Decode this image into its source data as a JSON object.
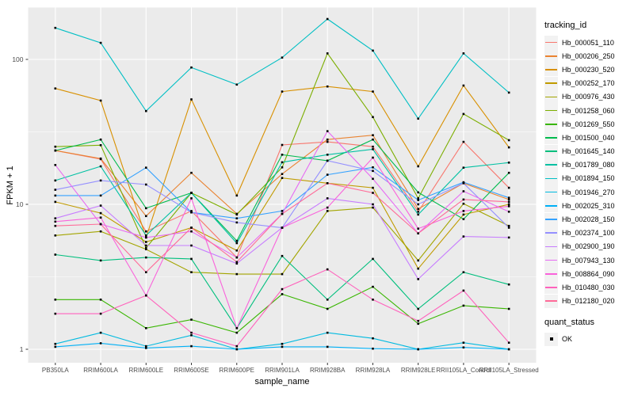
{
  "figure": {
    "background": "#FFFFFF",
    "panel_bg": "#EBEBEB",
    "grid_color": "#FFFFFF",
    "axis_text_color": "#4D4D4D",
    "tick_mark_color": "#333333",
    "point_color": "#000000",
    "legend_key_bg": "#F2F2F2"
  },
  "chart_data": {
    "type": "line",
    "title": "",
    "xlabel": "sample_name",
    "ylabel": "FPKM + 1",
    "y_scale": "log10",
    "y_ticks": [
      1,
      10,
      100
    ],
    "y_minor_ticks": [
      3.1623,
      31.623
    ],
    "ylim": [
      0.81,
      228
    ],
    "grid": "on",
    "legend": {
      "position": "right",
      "color_title": "tracking_id",
      "shape_title": "quant_status",
      "shape_items": [
        "OK"
      ]
    },
    "categories": [
      "PB350LA",
      "RRIM600LA",
      "RRIM600LE",
      "RRIM600SE",
      "RRIM600PE",
      "RRIM901LA",
      "RRIM928BA",
      "RRIM928LA",
      "RRIM928LE",
      "RRII105LA_Control",
      "RRII105LA_Stressed"
    ],
    "series": [
      {
        "name": "Hb_000051_110",
        "color": "#F8766D",
        "values": [
          23.5,
          20.5,
          6.5,
          9.0,
          4.3,
          25.7,
          27,
          25,
          8.9,
          27,
          13.0
        ]
      },
      {
        "name": "Hb_000206_250",
        "color": "#EA8331",
        "values": [
          23.5,
          20.7,
          8.3,
          16.5,
          8.6,
          16.2,
          28,
          30,
          9.3,
          14,
          10.8
        ]
      },
      {
        "name": "Hb_000230_520",
        "color": "#D89000",
        "values": [
          63,
          52,
          5.9,
          53,
          11.5,
          60,
          65,
          60,
          18.3,
          66,
          24.7
        ]
      },
      {
        "name": "Hb_000252_170",
        "color": "#C09B00",
        "values": [
          10.4,
          8.7,
          5.5,
          6.9,
          4.8,
          15.2,
          14,
          13,
          3.6,
          8.5,
          10.0
        ]
      },
      {
        "name": "Hb_000976_430",
        "color": "#A3A500",
        "values": [
          6.1,
          6.5,
          4.9,
          3.4,
          3.3,
          3.3,
          9,
          9.5,
          4.1,
          10.1,
          7.1
        ]
      },
      {
        "name": "Hb_001258_060",
        "color": "#7CAE00",
        "values": [
          25,
          25.6,
          5.0,
          12,
          8.5,
          18,
          110,
          40,
          11,
          42,
          27.7
        ]
      },
      {
        "name": "Hb_001269_550",
        "color": "#39B600",
        "values": [
          2.2,
          2.2,
          1.4,
          1.6,
          1.3,
          2.4,
          1.9,
          2.7,
          1.5,
          2.0,
          1.9
        ]
      },
      {
        "name": "Hb_001500_040",
        "color": "#00BB4E",
        "values": [
          23.5,
          28,
          9.4,
          12,
          5.6,
          22,
          20,
          28,
          12.1,
          7.9,
          16.5
        ]
      },
      {
        "name": "Hb_001645_140",
        "color": "#00BF7D",
        "values": [
          4.5,
          4.1,
          4.3,
          4.2,
          1.4,
          4.4,
          2.2,
          4.2,
          1.9,
          3.4,
          2.8
        ]
      },
      {
        "name": "Hb_001789_080",
        "color": "#00C1A3",
        "values": [
          14.6,
          18.3,
          6.1,
          12,
          5.4,
          19.5,
          22,
          24,
          8.5,
          17.9,
          19.4
        ]
      },
      {
        "name": "Hb_001894_150",
        "color": "#00BFC4",
        "values": [
          165,
          130,
          44,
          88,
          67,
          103,
          190,
          115,
          39,
          110,
          59
        ]
      },
      {
        "name": "Hb_001946_270",
        "color": "#00BAE0",
        "values": [
          1.09,
          1.3,
          1.05,
          1.25,
          1.0,
          1.09,
          1.3,
          1.19,
          1.0,
          1.11,
          1.0
        ]
      },
      {
        "name": "Hb_002025_310",
        "color": "#00B0F6",
        "values": [
          1.04,
          1.1,
          1.02,
          1.05,
          1.0,
          1.04,
          1.04,
          1.01,
          1.0,
          1.03,
          1.0
        ]
      },
      {
        "name": "Hb_002028_150",
        "color": "#35A2FF",
        "values": [
          11.5,
          11.5,
          17.9,
          8.8,
          8.0,
          9.0,
          16,
          18,
          10.7,
          14.2,
          11.1
        ]
      },
      {
        "name": "Hb_002374_100",
        "color": "#9590FF",
        "values": [
          12.6,
          14.6,
          13.7,
          8.8,
          7.5,
          6.9,
          20,
          17,
          10,
          14,
          6.9
        ]
      },
      {
        "name": "Hb_002900_190",
        "color": "#C77CFF",
        "values": [
          8.0,
          9.8,
          5.2,
          5.2,
          3.9,
          6.9,
          11,
          10,
          3.05,
          6.0,
          5.9
        ]
      },
      {
        "name": "Hb_007943_130",
        "color": "#E76BF3",
        "values": [
          18.7,
          7.3,
          5.9,
          6.5,
          4.3,
          8.6,
          32,
          15,
          6.3,
          12.3,
          8.9
        ]
      },
      {
        "name": "Hb_008864_090",
        "color": "#FA62DB",
        "values": [
          7.6,
          8.1,
          2.35,
          11,
          1.4,
          6.9,
          9.5,
          21,
          6.8,
          9.0,
          9.7
        ]
      },
      {
        "name": "Hb_010480_030",
        "color": "#FF62BC",
        "values": [
          1.76,
          1.76,
          2.35,
          1.3,
          1.05,
          2.6,
          3.56,
          2.2,
          1.57,
          2.54,
          1.11
        ]
      },
      {
        "name": "Hb_012180_020",
        "color": "#FF6A98",
        "values": [
          7.1,
          7.3,
          3.4,
          6.9,
          4.0,
          8.6,
          14,
          12,
          6.3,
          10.8,
          10.4
        ]
      }
    ]
  }
}
